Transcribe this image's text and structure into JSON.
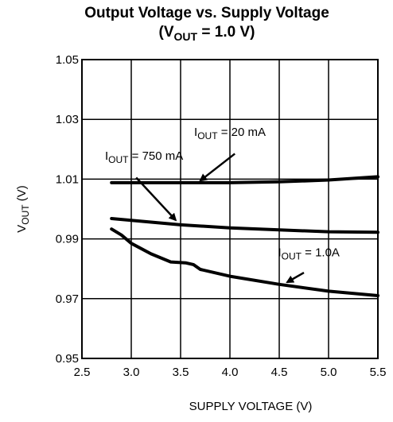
{
  "chart_data": {
    "type": "line",
    "title": {
      "line1": "Output Voltage vs. Supply Voltage",
      "line2_prefix": "(V",
      "line2_sub": "OUT",
      "line2_suffix": " = 1.0 V)"
    },
    "xlabel": "SUPPLY VOLTAGE (V)",
    "ylabel": {
      "main": "V",
      "sub": "OUT",
      "suffix": " (V)"
    },
    "xlim": [
      2.5,
      5.5
    ],
    "ylim": [
      0.95,
      1.05
    ],
    "xticks": [
      2.5,
      3.0,
      3.5,
      4.0,
      4.5,
      5.0,
      5.5
    ],
    "xtick_labels": [
      "2.5",
      "3.0",
      "3.5",
      "4.0",
      "4.5",
      "5.0",
      "5.5"
    ],
    "yticks": [
      0.95,
      0.97,
      0.99,
      1.01,
      1.03,
      1.05
    ],
    "ytick_labels": [
      "0.95",
      "0.97",
      "0.99",
      "1.01",
      "1.03",
      "1.05"
    ],
    "grid": true,
    "series": [
      {
        "name": "IOUT = 20 mA",
        "label": {
          "main": "I",
          "sub": "OUT",
          "suffix": " = 20 mA"
        },
        "x": [
          2.8,
          3.0,
          3.5,
          4.0,
          4.5,
          5.0,
          5.5
        ],
        "y": [
          1.0088,
          1.0088,
          1.0088,
          1.0088,
          1.0091,
          1.0097,
          1.0108
        ]
      },
      {
        "name": "IOUT = 750 mA",
        "label": {
          "main": "I",
          "sub": "OUT",
          "suffix": " = 750 mA"
        },
        "x": [
          2.8,
          3.0,
          3.5,
          4.0,
          4.5,
          5.0,
          5.5
        ],
        "y": [
          0.9968,
          0.9962,
          0.9947,
          0.9937,
          0.993,
          0.9924,
          0.9922
        ]
      },
      {
        "name": "IOUT = 1.0A",
        "label": {
          "main": "I",
          "sub": "OUT",
          "suffix": " = 1.0A"
        },
        "x": [
          2.8,
          2.9,
          3.0,
          3.2,
          3.4,
          3.55,
          3.63,
          3.7,
          4.0,
          4.5,
          5.0,
          5.5
        ],
        "y": [
          0.9933,
          0.9913,
          0.9885,
          0.985,
          0.9823,
          0.982,
          0.9814,
          0.9798,
          0.9775,
          0.9748,
          0.9725,
          0.971
        ]
      }
    ],
    "annotations": [
      {
        "series": 0,
        "x": 4.0,
        "y": 1.0245
      },
      {
        "series": 1,
        "x": 3.13,
        "y": 1.0165
      },
      {
        "series": 2,
        "x": 4.8,
        "y": 0.9842
      }
    ],
    "arrows": [
      {
        "from": [
          4.05,
          1.0185
        ],
        "to": [
          3.7,
          1.0095
        ]
      },
      {
        "from": [
          3.05,
          1.0105
        ],
        "to": [
          3.45,
          0.9963
        ]
      },
      {
        "from": [
          4.75,
          0.9787
        ],
        "to": [
          4.58,
          0.9755
        ]
      }
    ]
  }
}
